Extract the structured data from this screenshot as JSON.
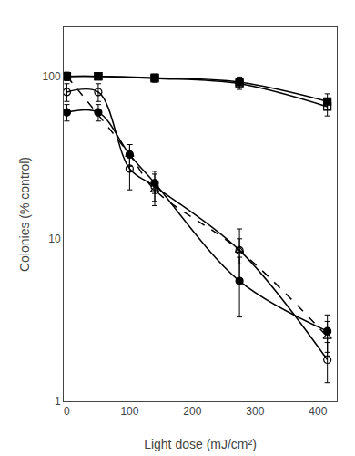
{
  "chart_data": {
    "type": "line",
    "xlabel": "Light dose (mJ/cm²)",
    "ylabel": "Colonies (% control)",
    "log": "y",
    "xlim": [
      -5,
      430
    ],
    "ylim": [
      1,
      200
    ],
    "xticks": [
      0,
      100,
      200,
      300,
      400
    ],
    "yticks": [
      1,
      10,
      100
    ],
    "grid": false,
    "series": [
      {
        "x": [
          0,
          50,
          140,
          275,
          415
        ],
        "values": [
          100,
          100,
          98,
          92,
          70
        ],
        "yerr": [
          4,
          4,
          5,
          7,
          8
        ],
        "color": "black",
        "marker": "square",
        "line_style": "solid"
      },
      {
        "x": [
          0,
          50,
          140,
          275,
          415
        ],
        "values": [
          100,
          100,
          97,
          90,
          65
        ],
        "yerr": [
          4,
          4,
          5,
          7,
          8
        ],
        "color": "black",
        "marker": "square-open",
        "line_style": "solid"
      },
      {
        "x": [
          0,
          100,
          140,
          275,
          415
        ],
        "values": [
          100,
          33,
          20,
          8.5,
          2.5
        ],
        "yerr": [
          6,
          5,
          3,
          1.5,
          0.6
        ],
        "color": "black",
        "marker": "triangle-up-open",
        "line_style": "dash"
      },
      {
        "x": [
          0,
          50,
          100,
          140,
          275,
          415
        ],
        "values": [
          80,
          80,
          27,
          21,
          8.5,
          1.8
        ],
        "yerr": [
          10,
          10,
          7,
          5,
          3.0,
          0.5
        ],
        "color": "black",
        "marker": "circle-open",
        "line_style": "solid"
      },
      {
        "x": [
          0,
          50,
          100,
          140,
          275,
          415
        ],
        "values": [
          60,
          60,
          33,
          22,
          5.5,
          2.7
        ],
        "yerr": [
          7,
          7,
          5,
          3,
          2.2,
          0.7
        ],
        "color": "black",
        "marker": "circle",
        "line_style": "solid"
      }
    ]
  }
}
